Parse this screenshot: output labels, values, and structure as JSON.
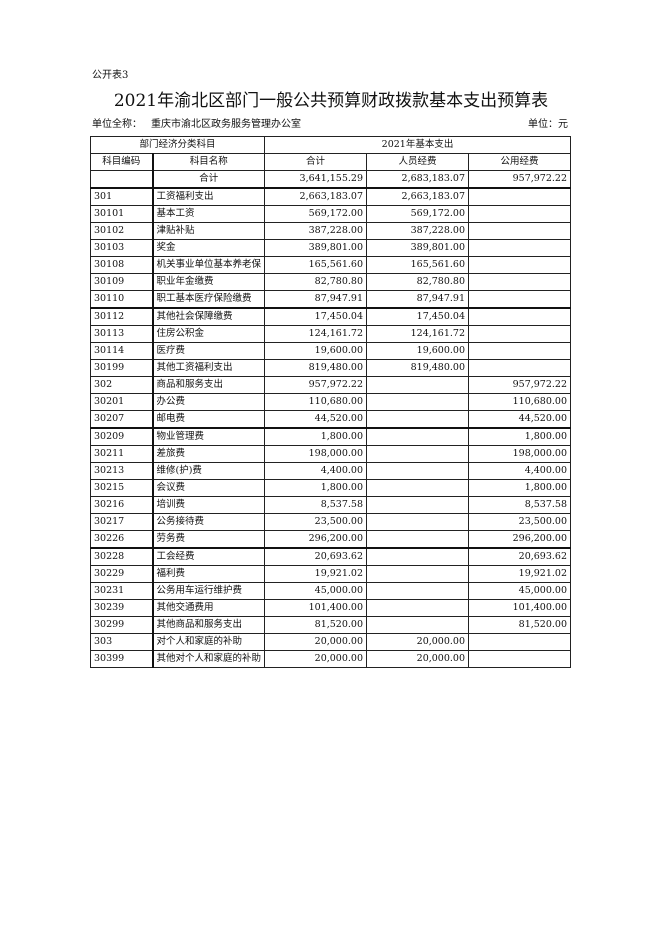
{
  "doc": {
    "tag": "公开表3",
    "title": "2021年渝北区部门一般公共预算财政拨款基本支出预算表",
    "unit_label": "单位全称：",
    "unit_name": "重庆市渝北区政务服务管理办公室",
    "currency_unit": "单位：元"
  },
  "table": {
    "group_headers": [
      "部门经济分类科目",
      "2021年基本支出"
    ],
    "columns": [
      "科目编码",
      "科目名称",
      "合计",
      "人员经费",
      "公用经费"
    ],
    "total_row": [
      "",
      "合计",
      "3,641,155.29",
      "2,683,183.07",
      "957,972.22"
    ],
    "rows": [
      [
        "301",
        "工资福利支出",
        "2,663,183.07",
        "2,663,183.07",
        ""
      ],
      [
        "30101",
        "基本工资",
        "569,172.00",
        "569,172.00",
        ""
      ],
      [
        "30102",
        "津贴补贴",
        "387,228.00",
        "387,228.00",
        ""
      ],
      [
        "30103",
        "奖金",
        "389,801.00",
        "389,801.00",
        ""
      ],
      [
        "30108",
        "机关事业单位基本养老保",
        "165,561.60",
        "165,561.60",
        ""
      ],
      [
        "30109",
        "职业年金缴费",
        "82,780.80",
        "82,780.80",
        ""
      ],
      [
        "30110",
        "职工基本医疗保险缴费",
        "87,947.91",
        "87,947.91",
        ""
      ],
      [
        "30112",
        "其他社会保障缴费",
        "17,450.04",
        "17,450.04",
        ""
      ],
      [
        "30113",
        "住房公积金",
        "124,161.72",
        "124,161.72",
        ""
      ],
      [
        "30114",
        "医疗费",
        "19,600.00",
        "19,600.00",
        ""
      ],
      [
        "30199",
        "其他工资福利支出",
        "819,480.00",
        "819,480.00",
        ""
      ],
      [
        "302",
        "商品和服务支出",
        "957,972.22",
        "",
        "957,972.22"
      ],
      [
        "30201",
        "办公费",
        "110,680.00",
        "",
        "110,680.00"
      ],
      [
        "30207",
        "邮电费",
        "44,520.00",
        "",
        "44,520.00"
      ],
      [
        "30209",
        "物业管理费",
        "1,800.00",
        "",
        "1,800.00"
      ],
      [
        "30211",
        "差旅费",
        "198,000.00",
        "",
        "198,000.00"
      ],
      [
        "30213",
        "维修(护)费",
        "4,400.00",
        "",
        "4,400.00"
      ],
      [
        "30215",
        "会议费",
        "1,800.00",
        "",
        "1,800.00"
      ],
      [
        "30216",
        "培训费",
        "8,537.58",
        "",
        "8,537.58"
      ],
      [
        "30217",
        "公务接待费",
        "23,500.00",
        "",
        "23,500.00"
      ],
      [
        "30226",
        "劳务费",
        "296,200.00",
        "",
        "296,200.00"
      ],
      [
        "30228",
        "工会经费",
        "20,693.62",
        "",
        "20,693.62"
      ],
      [
        "30229",
        "福利费",
        "19,921.02",
        "",
        "19,921.02"
      ],
      [
        "30231",
        "公务用车运行维护费",
        "45,000.00",
        "",
        "45,000.00"
      ],
      [
        "30239",
        "其他交通费用",
        "101,400.00",
        "",
        "101,400.00"
      ],
      [
        "30299",
        "其他商品和服务支出",
        "81,520.00",
        "",
        "81,520.00"
      ],
      [
        "303",
        "对个人和家庭的补助",
        "20,000.00",
        "20,000.00",
        ""
      ],
      [
        "30399",
        "其他对个人和家庭的补助",
        "20,000.00",
        "20,000.00",
        ""
      ]
    ]
  }
}
